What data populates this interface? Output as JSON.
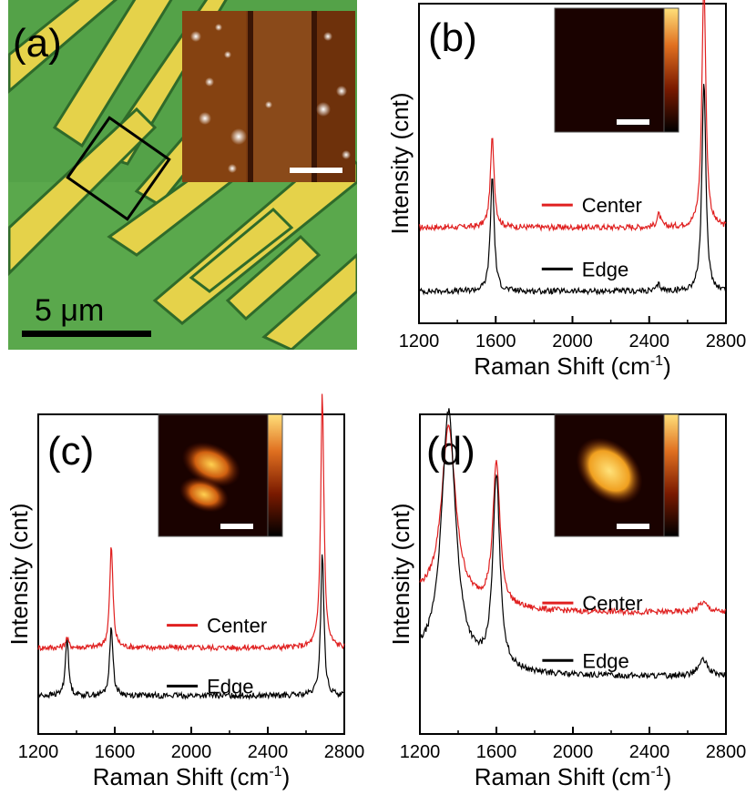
{
  "panel_a": {
    "label": "(a)",
    "scale_bar_text": "5 μm",
    "colors": {
      "substrate": "#5aa84c",
      "electrode": "#e5d24a",
      "inset_bg": "#7a3a10"
    }
  },
  "colors": {
    "center": "#e02020",
    "edge": "#000000",
    "map_dark": "#1a0200",
    "map_bright": "#ffd24a"
  },
  "chart_data": [
    {
      "panel": "(b)",
      "type": "line",
      "xlabel": "Raman Shift (cm-1)",
      "ylabel": "Intensity (cnt)",
      "xlim": [
        1200,
        2800
      ],
      "xticks": [
        1200,
        1600,
        2000,
        2400,
        2800
      ],
      "legend": [
        "Center",
        "Edge"
      ],
      "legend_position": "center-right",
      "series": [
        {
          "name": "Center",
          "peaks": [
            {
              "x": 1582,
              "height": 0.28
            },
            {
              "x": 2450,
              "height": 0.04
            },
            {
              "x": 2685,
              "height": 0.78
            }
          ]
        },
        {
          "name": "Edge",
          "peaks": [
            {
              "x": 1582,
              "height": 0.36
            },
            {
              "x": 2450,
              "height": 0.02
            },
            {
              "x": 2685,
              "height": 0.66
            }
          ]
        }
      ],
      "inset": "Raman map, uniformly dark"
    },
    {
      "panel": "(c)",
      "type": "line",
      "xlabel": "Raman Shift (cm-1)",
      "ylabel": "Intensity (cnt)",
      "xlim": [
        1200,
        2800
      ],
      "xticks": [
        1200,
        1600,
        2000,
        2400,
        2800
      ],
      "legend": [
        "Center",
        "Edge"
      ],
      "legend_position": "center",
      "series": [
        {
          "name": "Center",
          "peaks": [
            {
              "x": 1350,
              "height": 0.03
            },
            {
              "x": 1582,
              "height": 0.32
            },
            {
              "x": 2685,
              "height": 0.8
            }
          ]
        },
        {
          "name": "Edge",
          "peaks": [
            {
              "x": 1350,
              "height": 0.18
            },
            {
              "x": 1582,
              "height": 0.22
            },
            {
              "x": 2685,
              "height": 0.45
            }
          ]
        }
      ],
      "inset": "Raman map, two bright lobes"
    },
    {
      "panel": "(d)",
      "type": "line",
      "xlabel": "Raman Shift (cm-1)",
      "ylabel": "Intensity (cnt)",
      "xlim": [
        1200,
        2800
      ],
      "xticks": [
        1200,
        1600,
        2000,
        2400,
        2800
      ],
      "legend": [
        "Center",
        "Edge"
      ],
      "legend_position": "center-right",
      "series": [
        {
          "name": "Center",
          "peaks": [
            {
              "x": 1350,
              "height": 0.55
            },
            {
              "x": 1600,
              "height": 0.45
            },
            {
              "x": 2680,
              "height": 0.03
            }
          ]
        },
        {
          "name": "Edge",
          "peaks": [
            {
              "x": 1350,
              "height": 0.8
            },
            {
              "x": 1600,
              "height": 0.6
            },
            {
              "x": 2680,
              "height": 0.05
            }
          ]
        }
      ],
      "inset": "Raman map, bright oval"
    }
  ]
}
